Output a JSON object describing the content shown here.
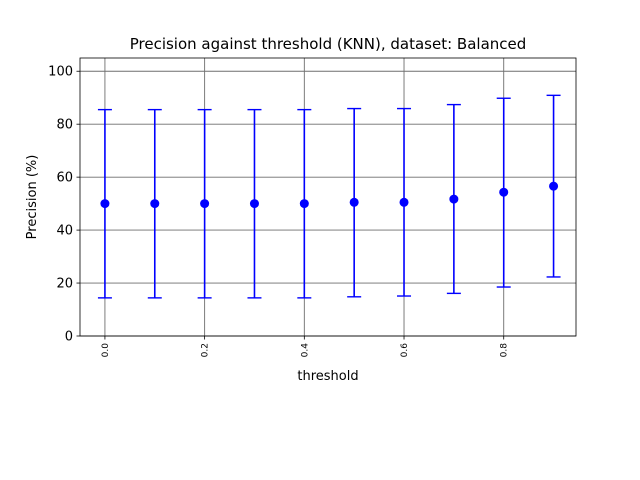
{
  "chart_data": {
    "type": "scatter",
    "title": "Precision against threshold (KNN), dataset: Balanced",
    "xlabel": "threshold",
    "ylabel": "Precision (%)",
    "xlim": [
      -0.05,
      0.945
    ],
    "ylim": [
      0,
      105
    ],
    "xticks": [
      0.0,
      0.2,
      0.4,
      0.6,
      0.8
    ],
    "xtick_labels": [
      "0.0",
      "0.2",
      "0.4",
      "0.6",
      "0.8"
    ],
    "yticks": [
      0,
      20,
      40,
      60,
      80,
      100
    ],
    "ytick_labels": [
      "0",
      "20",
      "40",
      "60",
      "80",
      "100"
    ],
    "grid": true,
    "color": "#0000ff",
    "series": [
      {
        "x": [
          0.0,
          0.1,
          0.2,
          0.3,
          0.4,
          0.5,
          0.6,
          0.7,
          0.8,
          0.9
        ],
        "y": [
          50.0,
          50.0,
          50.0,
          50.0,
          50.0,
          50.5,
          50.5,
          51.7,
          54.3,
          56.6
        ],
        "lower": [
          14.4,
          14.4,
          14.4,
          14.4,
          14.4,
          14.8,
          15.1,
          16.1,
          18.5,
          22.3
        ],
        "upper": [
          85.5,
          85.5,
          85.5,
          85.5,
          85.5,
          85.9,
          85.9,
          87.4,
          89.8,
          90.9
        ]
      }
    ]
  }
}
